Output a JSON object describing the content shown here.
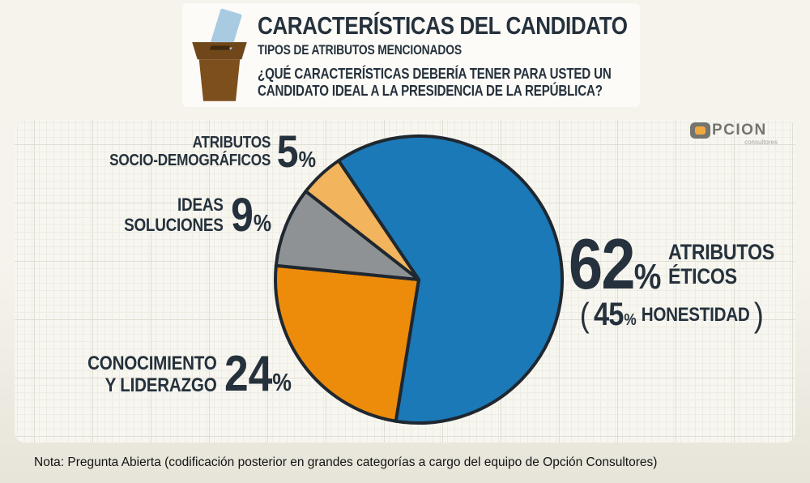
{
  "colors": {
    "page-top": "#f5f3ec",
    "page-bottom": "#e7e4d9",
    "headerbox": "#fcfbf7",
    "card": "#f7f6f0",
    "grid-fine": "#eeede3",
    "grid-major": "#e0ded2",
    "text": "#25313c",
    "note-text": "#141414",
    "box-brown": "#7d4f1d",
    "box-brown-dark": "#70471b",
    "box-slot": "#3e2a10",
    "ballot-blue": "#a9cbe2",
    "logo-gray": "#757570",
    "logo-orange": "#f0a93f"
  },
  "header": {
    "title": "CARACTERÍSTICAS DEL CANDIDATO",
    "subtitle": "TIPOS DE ATRIBUTOS MENCIONADOS",
    "question_line1": "¿QUÉ CARACTERÍSTICAS DEBERÍA TENER PARA USTED UN",
    "question_line2": "CANDIDATO IDEAL A LA PRESIDENCIA DE LA REPÚBLICA?"
  },
  "logo": {
    "wordmark_rest": "PCION",
    "tagline": "consultores"
  },
  "chart_data": {
    "type": "pie",
    "title": "CARACTERÍSTICAS DEL CANDIDATO — TIPOS DE ATRIBUTOS MENCIONADOS",
    "start_angle_deg": -34,
    "direction": "clockwise",
    "radius_px": 177,
    "stroke_color": "#1f2730",
    "stroke_width": 4,
    "legend": "callout-labels",
    "slices": [
      {
        "id": "eticos",
        "label": "ATRIBUTOS ÉTICOS",
        "value": 62,
        "color": "#1b79b7",
        "annotation": "45% HONESTIDAD"
      },
      {
        "id": "conocimiento",
        "label": "CONOCIMIENTO Y LIDERAZGO",
        "value": 24,
        "color": "#ed8b0b"
      },
      {
        "id": "ideas",
        "label": "IDEAS SOLUCIONES",
        "value": 9,
        "color": "#8f9294"
      },
      {
        "id": "socio",
        "label": "ATRIBUTOS SOCIO-DEMOGRÁFICOS",
        "value": 5,
        "color": "#f2b45c"
      }
    ]
  },
  "callouts": {
    "socio": {
      "line1": "ATRIBUTOS",
      "line2": "SOCIO-DEMOGRÁFICOS",
      "pct": "5",
      "sym": "%"
    },
    "ideas": {
      "line1": "IDEAS",
      "line2": "SOLUCIONES",
      "pct": "9",
      "sym": "%"
    },
    "conocimiento": {
      "line1": "CONOCIMIENTO",
      "line2": "Y LIDERAZGO",
      "pct": "24",
      "sym": "%"
    },
    "eticos": {
      "pct": "62",
      "sym": "%",
      "line1": "ATRIBUTOS",
      "line2": "ÉTICOS",
      "paren_open": "(",
      "sub_pct": "45",
      "sub_sym": "%",
      "sub_label": "HONESTIDAD",
      "paren_close": ")"
    }
  },
  "note": "Nota: Pregunta Abierta (codificación posterior en grandes categorías a cargo del equipo de Opción Consultores)"
}
